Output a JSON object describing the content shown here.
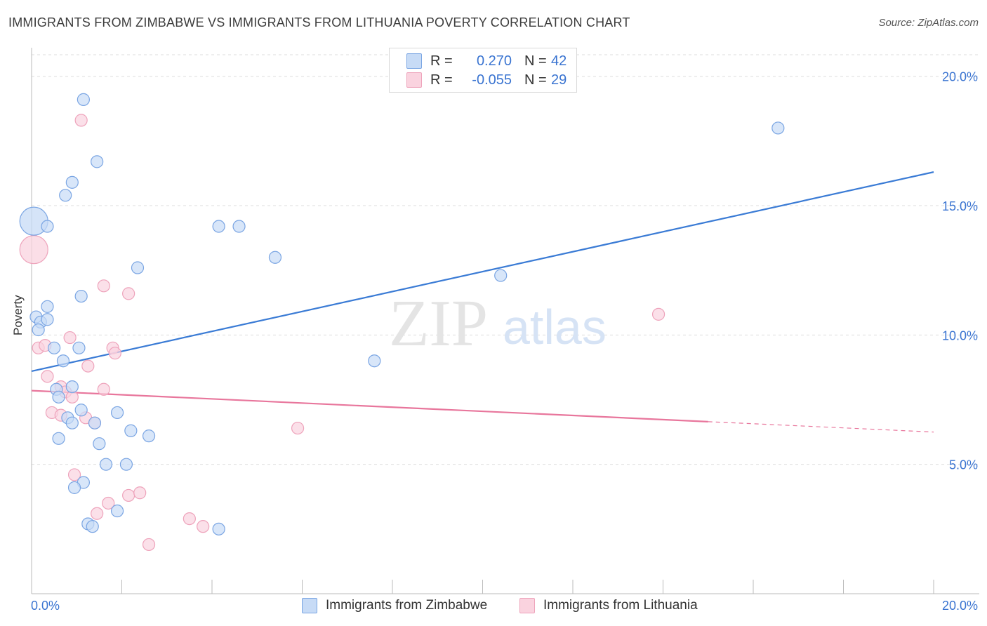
{
  "title": "IMMIGRANTS FROM ZIMBABWE VS IMMIGRANTS FROM LITHUANIA POVERTY CORRELATION CHART",
  "source": "Source: ZipAtlas.com",
  "watermark": {
    "zip": "ZIP",
    "atlas": "atlas"
  },
  "legend": {
    "rows": [
      {
        "r_label": "R =",
        "r_value": "0.270",
        "n_label": "N =",
        "n_value": "42",
        "color": "#aac7f0",
        "border": "#6a9be0"
      },
      {
        "r_label": "R =",
        "r_value": "-0.055",
        "n_label": "N =",
        "n_value": "29",
        "color": "#f8c3d3",
        "border": "#e99ab2"
      }
    ]
  },
  "colors": {
    "blue_line": "#3a7bd5",
    "pink_line": "#e8769c",
    "blue_fill": "#c7dbf6",
    "blue_stroke": "#7aa5e3",
    "pink_fill": "#fad3df",
    "pink_stroke": "#eea3bb",
    "tick_label": "#3a74d1",
    "grid": "#dddddd"
  },
  "chart_data": {
    "type": "scatter",
    "xlabel": "",
    "ylabel": "Poverty",
    "xlim": [
      0,
      20
    ],
    "ylim": [
      0,
      20.7
    ],
    "x_ticks": [
      {
        "value": 0,
        "label": "0.0%"
      },
      {
        "value": 20,
        "label": "20.0%"
      }
    ],
    "y_ticks": [
      {
        "value": 5,
        "label": "5.0%"
      },
      {
        "value": 10,
        "label": "10.0%"
      },
      {
        "value": 15,
        "label": "15.0%"
      },
      {
        "value": 20,
        "label": "20.0%"
      }
    ],
    "grid": true,
    "legend_position": "bottom-center",
    "series": [
      {
        "name": "Immigrants from Zimbabwe",
        "color": "#3a7bd5",
        "trend": {
          "x0": 0,
          "y0": 8.6,
          "x1": 20,
          "y1": 16.3
        },
        "points": [
          {
            "x": 0.05,
            "y": 14.4,
            "size": "large"
          },
          {
            "x": 0.1,
            "y": 10.7
          },
          {
            "x": 0.2,
            "y": 10.5
          },
          {
            "x": 0.15,
            "y": 10.2
          },
          {
            "x": 0.35,
            "y": 10.6
          },
          {
            "x": 0.35,
            "y": 14.2
          },
          {
            "x": 0.35,
            "y": 11.1
          },
          {
            "x": 0.5,
            "y": 9.5
          },
          {
            "x": 0.7,
            "y": 9.0
          },
          {
            "x": 0.9,
            "y": 15.9
          },
          {
            "x": 0.75,
            "y": 15.4
          },
          {
            "x": 1.15,
            "y": 19.1
          },
          {
            "x": 1.45,
            "y": 16.7
          },
          {
            "x": 1.1,
            "y": 11.5
          },
          {
            "x": 1.05,
            "y": 9.5
          },
          {
            "x": 0.9,
            "y": 8.0
          },
          {
            "x": 0.55,
            "y": 7.9
          },
          {
            "x": 0.6,
            "y": 7.6
          },
          {
            "x": 0.8,
            "y": 6.8
          },
          {
            "x": 0.9,
            "y": 6.6
          },
          {
            "x": 1.1,
            "y": 7.1
          },
          {
            "x": 0.6,
            "y": 6.0
          },
          {
            "x": 1.4,
            "y": 6.6
          },
          {
            "x": 1.5,
            "y": 5.8
          },
          {
            "x": 1.9,
            "y": 7.0
          },
          {
            "x": 1.65,
            "y": 5.0
          },
          {
            "x": 1.15,
            "y": 4.3
          },
          {
            "x": 0.95,
            "y": 4.1
          },
          {
            "x": 2.2,
            "y": 6.3
          },
          {
            "x": 2.6,
            "y": 6.1
          },
          {
            "x": 2.1,
            "y": 5.0
          },
          {
            "x": 2.35,
            "y": 12.6
          },
          {
            "x": 1.25,
            "y": 2.7
          },
          {
            "x": 1.35,
            "y": 2.6
          },
          {
            "x": 1.9,
            "y": 3.2
          },
          {
            "x": 4.15,
            "y": 14.2
          },
          {
            "x": 4.6,
            "y": 14.2
          },
          {
            "x": 5.4,
            "y": 13.0
          },
          {
            "x": 4.15,
            "y": 2.5
          },
          {
            "x": 7.6,
            "y": 9.0
          },
          {
            "x": 10.4,
            "y": 12.3
          },
          {
            "x": 16.55,
            "y": 18.0
          }
        ]
      },
      {
        "name": "Immigrants from Lithuania",
        "color": "#e8769c",
        "trend": {
          "x0": 0,
          "y0": 7.85,
          "x1": 15,
          "y1": 6.65,
          "dash_to_x": 20,
          "dash_to_y": 6.25
        },
        "points": [
          {
            "x": 0.05,
            "y": 13.3,
            "size": "large"
          },
          {
            "x": 1.1,
            "y": 18.3
          },
          {
            "x": 0.15,
            "y": 9.5
          },
          {
            "x": 0.3,
            "y": 9.6
          },
          {
            "x": 0.35,
            "y": 8.4
          },
          {
            "x": 0.65,
            "y": 8.0
          },
          {
            "x": 0.75,
            "y": 7.8
          },
          {
            "x": 0.9,
            "y": 7.6
          },
          {
            "x": 0.85,
            "y": 9.9
          },
          {
            "x": 1.25,
            "y": 8.8
          },
          {
            "x": 1.6,
            "y": 11.9
          },
          {
            "x": 2.15,
            "y": 11.6
          },
          {
            "x": 1.8,
            "y": 9.5
          },
          {
            "x": 1.85,
            "y": 9.3
          },
          {
            "x": 1.6,
            "y": 7.9
          },
          {
            "x": 0.45,
            "y": 7.0
          },
          {
            "x": 0.65,
            "y": 6.9
          },
          {
            "x": 1.2,
            "y": 6.8
          },
          {
            "x": 1.4,
            "y": 6.6
          },
          {
            "x": 0.95,
            "y": 4.6
          },
          {
            "x": 1.7,
            "y": 3.5
          },
          {
            "x": 2.15,
            "y": 3.8
          },
          {
            "x": 2.4,
            "y": 3.9
          },
          {
            "x": 1.45,
            "y": 3.1
          },
          {
            "x": 3.5,
            "y": 2.9
          },
          {
            "x": 3.8,
            "y": 2.6
          },
          {
            "x": 2.6,
            "y": 1.9
          },
          {
            "x": 5.9,
            "y": 6.4
          },
          {
            "x": 13.9,
            "y": 10.8
          }
        ]
      }
    ]
  }
}
